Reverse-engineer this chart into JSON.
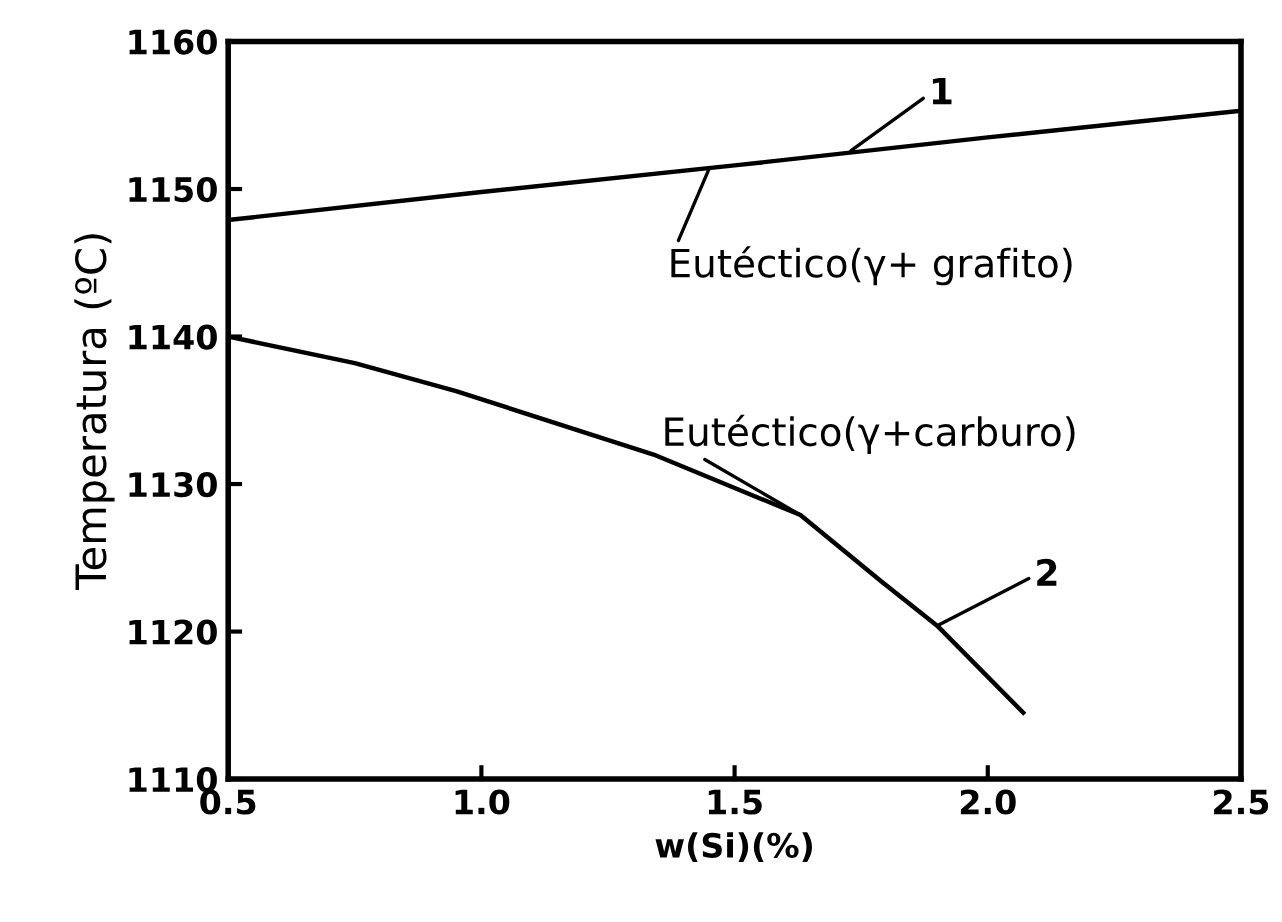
{
  "chart_data": {
    "type": "line",
    "xlabel": "w(Si)(%)",
    "ylabel": "Temperatura (ºC)",
    "series": [
      {
        "color": "#000000",
        "x": [
          0.5,
          1.0,
          1.5,
          2.0,
          2.5
        ],
        "values": [
          1147.9,
          1149.8,
          1151.6,
          1153.5,
          1155.3
        ]
      },
      {
        "color": "#000000",
        "x": [
          0.5,
          0.75,
          0.95,
          1.34,
          1.63,
          1.79,
          1.9,
          2.07
        ],
        "values": [
          1140.0,
          1138.2,
          1136.3,
          1132.0,
          1127.9,
          1123.4,
          1120.4,
          1114.5
        ]
      }
    ],
    "annotations": [
      {
        "text": "1",
        "x": 1.73,
        "y": 1152.6
      },
      {
        "text": "Eutéctico(γ+ grafito)",
        "x": 1.45,
        "y": 1151.4
      },
      {
        "text": "Eutéctico(γ+carburo)",
        "x": 1.63,
        "y": 1127.9
      },
      {
        "text": "2",
        "x": 1.9,
        "y": 1120.4
      }
    ],
    "xlim": [
      0.5,
      2.5
    ],
    "ylim": [
      1110,
      1160
    ],
    "xticks": [
      {
        "value": 0.5,
        "label": "0.5"
      },
      {
        "value": 1.0,
        "label": "1.0"
      },
      {
        "value": 1.5,
        "label": "1.5"
      },
      {
        "value": 2.0,
        "label": "2.0"
      },
      {
        "value": 2.5,
        "label": "2.5"
      }
    ],
    "yticks": [
      1110,
      1120,
      1130,
      1140,
      1150,
      1160
    ],
    "grid": false,
    "legend": false,
    "marker": "none",
    "line_style": "solid"
  }
}
